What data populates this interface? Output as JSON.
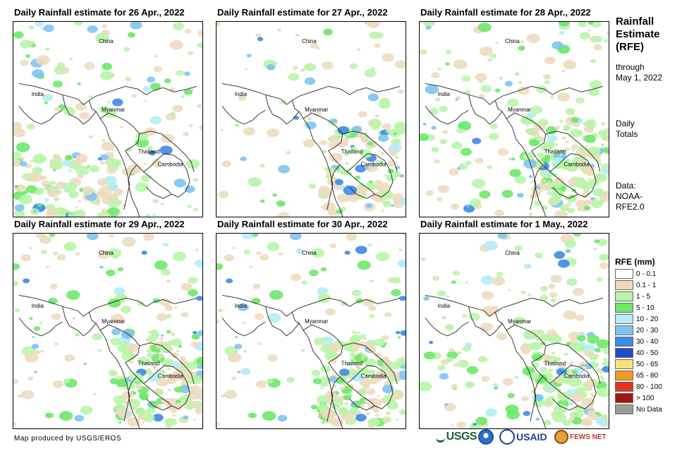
{
  "panels": [
    {
      "title": "Daily Rainfall estimate for 26 Apr., 2022",
      "intensity": 0.45,
      "focus": "south-west"
    },
    {
      "title": "Daily Rainfall estimate for 27 Apr., 2022",
      "intensity": 0.2,
      "focus": "east"
    },
    {
      "title": "Daily Rainfall estimate for 28 Apr., 2022",
      "intensity": 0.75,
      "focus": "east"
    },
    {
      "title": "Daily Rainfall estimate for 29 Apr., 2022",
      "intensity": 0.6,
      "focus": "east"
    },
    {
      "title": "Daily Rainfall estimate for 30 Apr., 2022",
      "intensity": 0.55,
      "focus": "east"
    },
    {
      "title": "Daily Rainfall estimate for 1 May., 2022",
      "intensity": 0.55,
      "focus": "east"
    }
  ],
  "map_labels": {
    "china": "China",
    "india": "India",
    "myanmar": "Myanmar",
    "thailand": "Thailand",
    "cambodia": "Cambodia"
  },
  "sidebar": {
    "title_line1": "Rainfall",
    "title_line2": "Estimate",
    "title_line3": "(RFE)",
    "through_line1": "through",
    "through_line2": "May 1, 2022",
    "daily_line1": "Daily",
    "daily_line2": "Totals",
    "data_line1": "Data:",
    "data_line2": "NOAA-",
    "data_line3": "RFE2.0"
  },
  "legend": {
    "title": "RFE (mm)",
    "items": [
      {
        "label": "0 - 0.1",
        "color": "#ffffff"
      },
      {
        "label": "0.1 - 1",
        "color": "#ecdcbf"
      },
      {
        "label": "1 - 5",
        "color": "#b8f5a9"
      },
      {
        "label": "5 - 10",
        "color": "#6ee86a"
      },
      {
        "label": "10 - 20",
        "color": "#b5ecf7"
      },
      {
        "label": "20 - 30",
        "color": "#7fc3f2"
      },
      {
        "label": "30 - 40",
        "color": "#3d8ae8"
      },
      {
        "label": "40 - 50",
        "color": "#1f4fc8"
      },
      {
        "label": "50 - 65",
        "color": "#f9e27a"
      },
      {
        "label": "65 - 80",
        "color": "#f39a1e"
      },
      {
        "label": "80 - 100",
        "color": "#e8301c"
      },
      {
        "label": "> 100",
        "color": "#a31616"
      },
      {
        "label": "No Data",
        "color": "#9c9c9c"
      }
    ]
  },
  "credit": "Map produced by USGS/EROS",
  "logos": {
    "usgs": "USGS",
    "usaid": "USAID",
    "fews": "FEWS NET"
  }
}
